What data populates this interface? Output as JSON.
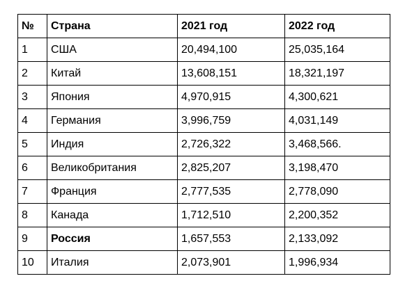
{
  "table": {
    "headers": [
      "№",
      "Страна",
      "2021 год",
      "2022 год"
    ],
    "rows": [
      {
        "num": "1",
        "country": "США",
        "y2021": "20,494,100",
        "y2022": "25,035,164"
      },
      {
        "num": "2",
        "country": "Китай",
        "y2021": "13,608,151",
        "y2022": "18,321,197"
      },
      {
        "num": "3",
        "country": "Япония",
        "y2021": "4,970,915",
        "y2022": "4,300,621"
      },
      {
        "num": "4",
        "country": "Германия",
        "y2021": "3,996,759",
        "y2022": "4,031,149"
      },
      {
        "num": "5",
        "country": "Индия",
        "y2021": "2,726,322",
        "y2022": "3,468,566."
      },
      {
        "num": "6",
        "country": "Великобритания",
        "y2021": "2,825,207",
        "y2022": "3,198,470"
      },
      {
        "num": "7",
        "country": "Франция",
        "y2021": "2,777,535",
        "y2022": "2,778,090"
      },
      {
        "num": "8",
        "country": "Канада",
        "y2021": "1,712,510",
        "y2022": "2,200,352"
      },
      {
        "num": "9",
        "country": "Россия",
        "y2021": "1,657,553",
        "y2022": "2,133,092",
        "bold_country": true
      },
      {
        "num": "10",
        "country": "Италия",
        "y2021": "2,073,901",
        "y2022": "1,996,934"
      }
    ]
  }
}
